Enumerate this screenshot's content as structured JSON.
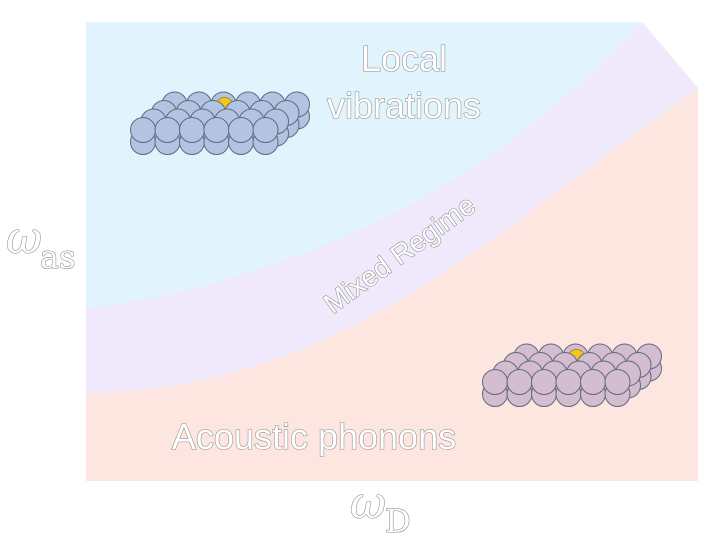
{
  "regions": {
    "top": {
      "label_line1": "Local",
      "label_line2": "vibrations",
      "color": "#e1f3fc"
    },
    "middle": {
      "label": "Mixed Regime",
      "color": "#efe9fb"
    },
    "bottom": {
      "label": "Acoustic phonons",
      "color": "#fde6e0"
    }
  },
  "axes": {
    "y": {
      "symbol": "ω",
      "subscript": "as"
    },
    "x": {
      "symbol": "ω",
      "subscript": "D"
    }
  },
  "lattices": {
    "top": {
      "atom_color": "#b3c4e2",
      "highlight_color": "#f2c61e"
    },
    "bottom": {
      "atom_color": "#d4bdcf",
      "highlight_color": "#f2c61e"
    }
  }
}
